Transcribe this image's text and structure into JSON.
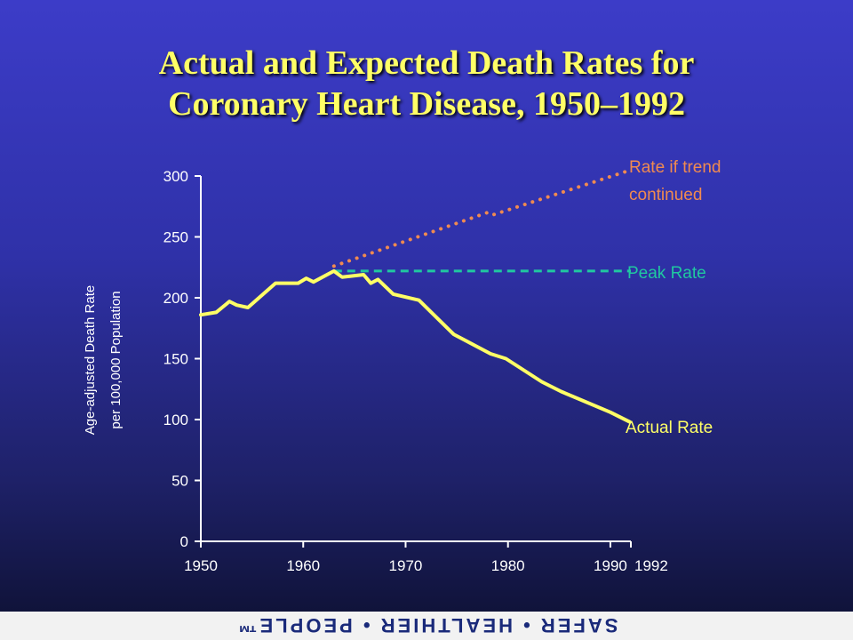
{
  "slide": {
    "title_line1": "Actual and Expected Death Rates for",
    "title_line2": "Coronary Heart Disease, 1950–1992",
    "footer": "SAFER • HEALTHIER • PEOPLE™"
  },
  "colors": {
    "title": "#ffff66",
    "actual": "#ffff66",
    "trend": "#f08a50",
    "peak": "#20c8a0",
    "axis": "#ffffff"
  },
  "chart_data": {
    "type": "line",
    "title": "Actual and Expected Death Rates for Coronary Heart Disease, 1950–1992",
    "ylabel_line1": "Age-adjusted Death Rate",
    "ylabel_line2": "per 100,000 Population",
    "xlabel": "",
    "xlim": [
      1950,
      1992
    ],
    "ylim": [
      0,
      300
    ],
    "xticks": [
      1950,
      1960,
      1970,
      1980,
      1990,
      1992
    ],
    "yticks": [
      0,
      50,
      100,
      150,
      200,
      250,
      300
    ],
    "grid": false,
    "series": [
      {
        "name": "Actual Rate",
        "style": "solid",
        "color": "#ffff66",
        "x": [
          1950,
          1951.5,
          1952.8,
          1953.5,
          1954.6,
          1957.3,
          1959.5,
          1960.3,
          1961,
          1963,
          1963.8,
          1965.9,
          1966.6,
          1967.3,
          1968.8,
          1971.3,
          1974.7,
          1978.3,
          1979.8,
          1983.3,
          1985.2,
          1990,
          1991.9
        ],
        "y": [
          186,
          188,
          197,
          194,
          192,
          212,
          212,
          216,
          213,
          222,
          217,
          219,
          212,
          215,
          203,
          198,
          170,
          154,
          150,
          131,
          123,
          106,
          98
        ]
      },
      {
        "name": "Rate if trend continued",
        "style": "dotted",
        "color": "#f08a50",
        "x": [
          1963,
          1978,
          1978.5,
          1992
        ],
        "y": [
          226,
          270,
          268,
          305
        ]
      },
      {
        "name": "Peak Rate",
        "style": "dashed",
        "color": "#20c8a0",
        "x": [
          1963,
          1992
        ],
        "y": [
          222,
          222
        ]
      }
    ],
    "annotations": [
      {
        "series": "Rate if trend continued",
        "line1": "Rate if trend",
        "line2": "continued"
      },
      {
        "series": "Peak Rate",
        "text": "Peak Rate"
      },
      {
        "series": "Actual Rate",
        "text": "Actual Rate"
      }
    ]
  }
}
